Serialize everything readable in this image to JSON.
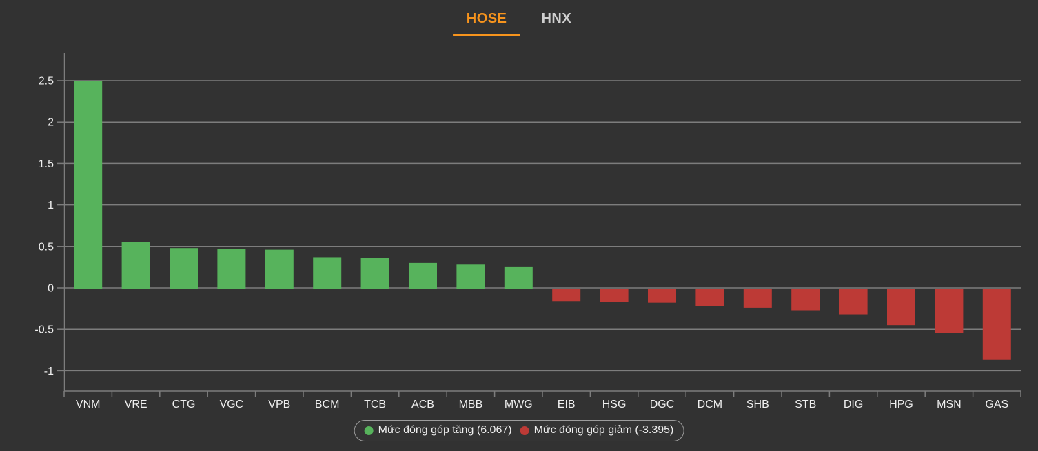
{
  "header": {
    "tabs": [
      {
        "label": "HOSE",
        "active": true
      },
      {
        "label": "HNX",
        "active": false
      }
    ]
  },
  "colors": {
    "background": "#323232",
    "accent_orange": "#f7941d",
    "tab_inactive": "#cfcfcf",
    "positive_green": "#57b35c",
    "negative_red": "#bd3a36",
    "gridline": "#7d7d7d",
    "axis_text": "#efefef",
    "legend_border": "#9c9c9c"
  },
  "chart_data": {
    "type": "bar",
    "title": "",
    "xlabel": "",
    "ylabel": "",
    "categories": [
      "VNM",
      "VRE",
      "CTG",
      "VGC",
      "VPB",
      "BCM",
      "TCB",
      "ACB",
      "MBB",
      "MWG",
      "EIB",
      "HSG",
      "DGC",
      "DCM",
      "SHB",
      "STB",
      "DIG",
      "HPG",
      "MSN",
      "GAS"
    ],
    "values": [
      2.5,
      0.55,
      0.48,
      0.47,
      0.46,
      0.37,
      0.36,
      0.3,
      0.28,
      0.25,
      -0.16,
      -0.17,
      -0.18,
      -0.22,
      -0.24,
      -0.27,
      -0.32,
      -0.45,
      -0.54,
      -0.87
    ],
    "yticks": [
      2.5,
      2,
      1.5,
      1,
      0.5,
      0,
      -0.5,
      -1
    ],
    "ylim": [
      -1.25,
      2.83
    ],
    "grid": true,
    "legend_position": "bottom",
    "legend": [
      {
        "label": "Mức đóng góp tăng (6.067)",
        "marker_color": "#57b35c"
      },
      {
        "label": "Mức đóng góp giảm (-3.395)",
        "marker_color": "#bd3a36"
      }
    ]
  }
}
